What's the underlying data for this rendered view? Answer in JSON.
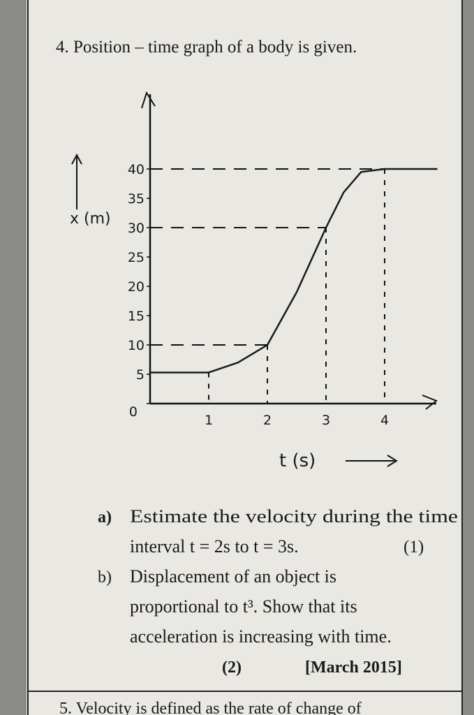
{
  "header": {
    "title": "4. Position – time graph of a body is given."
  },
  "chart_data": {
    "type": "line",
    "x": [
      0,
      1,
      1.5,
      2,
      2.5,
      3,
      3.3,
      3.6,
      4,
      4.9
    ],
    "series": [
      {
        "color": "#1a1a1a",
        "values": [
          5.3,
          5.3,
          7,
          10,
          19,
          30,
          36,
          39.5,
          40,
          40
        ]
      }
    ],
    "xlim": [
      0,
      4.9
    ],
    "ylim": [
      0,
      53
    ],
    "xticks": [
      1,
      2,
      3,
      4
    ],
    "yticks": [
      0,
      5,
      10,
      15,
      20,
      25,
      30,
      35,
      40
    ],
    "x_label": "t (s)",
    "y_label": "x (m)"
  },
  "questions": [
    {
      "label": "a)",
      "lines": [
        "Estimate the velocity during the time",
        "interval t = 2s to  t = 3s."
      ],
      "marks": "(1)"
    },
    {
      "label": "b)",
      "lines": [
        "Displacement   of   an   object   is",
        "proportional  to  t³.  Show  that  its",
        "acceleration is increasing with time."
      ],
      "marks": "(2)",
      "source": "[March 2015]"
    }
  ],
  "next": "5. Velocity is defined as the rate of change of"
}
